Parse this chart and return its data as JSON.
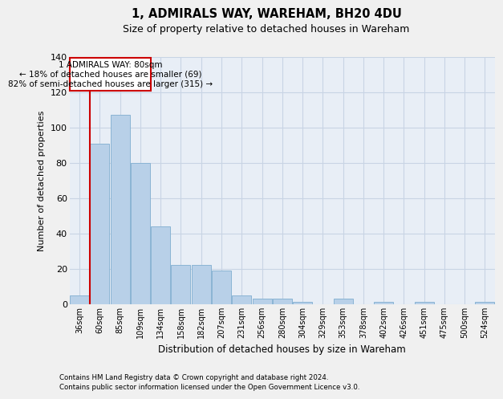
{
  "title": "1, ADMIRALS WAY, WAREHAM, BH20 4DU",
  "subtitle": "Size of property relative to detached houses in Wareham",
  "xlabel": "Distribution of detached houses by size in Wareham",
  "ylabel": "Number of detached properties",
  "categories": [
    "36sqm",
    "60sqm",
    "85sqm",
    "109sqm",
    "134sqm",
    "158sqm",
    "182sqm",
    "207sqm",
    "231sqm",
    "256sqm",
    "280sqm",
    "304sqm",
    "329sqm",
    "353sqm",
    "378sqm",
    "402sqm",
    "426sqm",
    "451sqm",
    "475sqm",
    "500sqm",
    "524sqm"
  ],
  "values": [
    5,
    91,
    107,
    80,
    44,
    22,
    22,
    19,
    5,
    3,
    3,
    1,
    0,
    3,
    0,
    1,
    0,
    1,
    0,
    0,
    1
  ],
  "bar_color": "#b8d0e8",
  "bar_edge_color": "#8ab4d4",
  "grid_color": "#c8d4e4",
  "background_color": "#e8eef6",
  "fig_background_color": "#f0f0f0",
  "annotation_text_line1": "1 ADMIRALS WAY: 80sqm",
  "annotation_text_line2": "← 18% of detached houses are smaller (69)",
  "annotation_text_line3": "82% of semi-detached houses are larger (315) →",
  "annotation_box_facecolor": "#ffffff",
  "annotation_border_color": "#cc0000",
  "vline_color": "#cc0000",
  "vline_x_index": 1,
  "footer_line1": "Contains HM Land Registry data © Crown copyright and database right 2024.",
  "footer_line2": "Contains public sector information licensed under the Open Government Licence v3.0.",
  "ylim": [
    0,
    140
  ],
  "yticks": [
    0,
    20,
    40,
    60,
    80,
    100,
    120,
    140
  ]
}
